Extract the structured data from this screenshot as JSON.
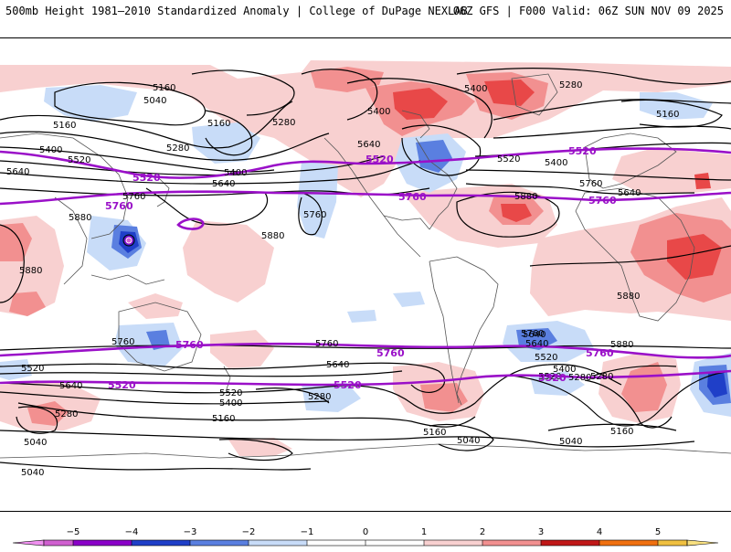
{
  "header": {
    "left_title": "500mb Height 1981–2010 Standardized Anomaly | College of DuPage NEXLAB",
    "right_title": "06Z GFS | F000 Valid: 06Z SUN NOV 09 2025"
  },
  "colors": {
    "anom_neg5": "#d060d0",
    "anom_neg4": "#8a00c8",
    "anom_neg3": "#1f3fc8",
    "anom_neg2": "#5a7fe0",
    "anom_neg1": "#c8dcf8",
    "anom_pos1": "#f8d0d0",
    "anom_pos2": "#f29090",
    "anom_pos3": "#e84848",
    "anom_pos4": "#c01818",
    "anom_pos5": "#f0a020",
    "highlight_contour": "#9a10c8",
    "height_contour": "#000000"
  },
  "contour_labels": [
    {
      "value": "5160",
      "style": "black"
    },
    {
      "value": "5040",
      "style": "black"
    },
    {
      "value": "5160",
      "style": "black"
    },
    {
      "value": "5160",
      "style": "black"
    },
    {
      "value": "5280",
      "style": "black"
    },
    {
      "value": "5400",
      "style": "black"
    },
    {
      "value": "5520",
      "style": "black"
    },
    {
      "value": "5640",
      "style": "black"
    },
    {
      "value": "5280",
      "style": "black"
    },
    {
      "value": "5400",
      "style": "black"
    },
    {
      "value": "5640",
      "style": "black"
    },
    {
      "value": "5760",
      "style": "black"
    },
    {
      "value": "5880",
      "style": "black"
    },
    {
      "value": "5880",
      "style": "black"
    },
    {
      "value": "5640",
      "style": "black"
    },
    {
      "value": "5400",
      "style": "black"
    },
    {
      "value": "5280",
      "style": "black"
    },
    {
      "value": "5400",
      "style": "black"
    },
    {
      "value": "5520",
      "style": "black"
    },
    {
      "value": "5400",
      "style": "black"
    },
    {
      "value": "5160",
      "style": "black"
    },
    {
      "value": "5640",
      "style": "black"
    },
    {
      "value": "5760",
      "style": "black"
    },
    {
      "value": "5880",
      "style": "black"
    },
    {
      "value": "5880",
      "style": "black"
    },
    {
      "value": "5880",
      "style": "black"
    },
    {
      "value": "5760",
      "style": "black"
    },
    {
      "value": "5760",
      "style": "black"
    },
    {
      "value": "5520",
      "style": "black"
    },
    {
      "value": "5640",
      "style": "black"
    },
    {
      "value": "5280",
      "style": "black"
    },
    {
      "value": "5520",
      "style": "black"
    },
    {
      "value": "5400",
      "style": "black"
    },
    {
      "value": "5160",
      "style": "black"
    },
    {
      "value": "5040",
      "style": "black"
    },
    {
      "value": "5040",
      "style": "black"
    },
    {
      "value": "5640",
      "style": "black"
    },
    {
      "value": "5280",
      "style": "black"
    },
    {
      "value": "5160",
      "style": "black"
    },
    {
      "value": "5040",
      "style": "black"
    },
    {
      "value": "5760",
      "style": "black"
    },
    {
      "value": "5640",
      "style": "black"
    },
    {
      "value": "5520",
      "style": "black"
    },
    {
      "value": "5400",
      "style": "black"
    },
    {
      "value": "5280",
      "style": "black"
    },
    {
      "value": "5880",
      "style": "black"
    },
    {
      "value": "5160",
      "style": "black"
    },
    {
      "value": "5040",
      "style": "black"
    },
    {
      "value": "5640",
      "style": "black"
    },
    {
      "value": "5760",
      "style": "black"
    },
    {
      "value": "5520",
      "style": "purple"
    },
    {
      "value": "5520",
      "style": "purple"
    },
    {
      "value": "5520",
      "style": "purple"
    },
    {
      "value": "5760",
      "style": "purple"
    },
    {
      "value": "5760",
      "style": "purple"
    },
    {
      "value": "5760",
      "style": "purple"
    },
    {
      "value": "5520",
      "style": "purple"
    },
    {
      "value": "5760",
      "style": "purple"
    },
    {
      "value": "5760",
      "style": "purple"
    },
    {
      "value": "5760",
      "style": "purple"
    },
    {
      "value": "5520",
      "style": "purple"
    },
    {
      "value": "5520",
      "style": "purple"
    },
    {
      "value": "5520",
      "style": "purple"
    },
    {
      "value": "5520",
      "style": "black"
    },
    {
      "value": "5280",
      "style": "black"
    }
  ],
  "colorbar": {
    "ticks": [
      "−5",
      "−4",
      "−3",
      "−2",
      "−1",
      "0",
      "1",
      "2",
      "3",
      "4",
      "5"
    ]
  }
}
